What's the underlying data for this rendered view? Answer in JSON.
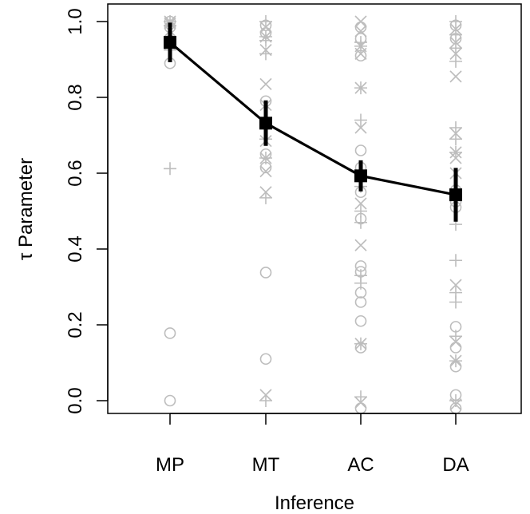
{
  "chart_data": {
    "type": "scatter",
    "title": "",
    "xlabel": "Inference",
    "ylabel": "τ Parameter",
    "categories": [
      "MP",
      "MT",
      "AC",
      "DA"
    ],
    "ylim": [
      -0.03,
      1.03
    ],
    "yticks": [
      "0.0",
      "0.2",
      "0.4",
      "0.6",
      "0.8",
      "1.0"
    ],
    "grid": false,
    "legend": "none",
    "colors": {
      "raw_points": "#bdbdbd",
      "mean_line": "#000000"
    },
    "mean_series": {
      "values": [
        0.945,
        0.732,
        0.593,
        0.543
      ],
      "ci_low": [
        0.893,
        0.672,
        0.552,
        0.472
      ],
      "ci_high": [
        0.997,
        0.792,
        0.634,
        0.614
      ]
    },
    "raw_points": [
      {
        "cat": 0,
        "y": 1.0,
        "m": "o"
      },
      {
        "cat": 0,
        "y": 0.995,
        "m": "x"
      },
      {
        "cat": 0,
        "y": 0.99,
        "m": "+"
      },
      {
        "cat": 0,
        "y": 1.0,
        "m": "*"
      },
      {
        "cat": 0,
        "y": 0.985,
        "m": "o"
      },
      {
        "cat": 0,
        "y": 0.975,
        "m": "x"
      },
      {
        "cat": 0,
        "y": 0.96,
        "m": "+"
      },
      {
        "cat": 0,
        "y": 0.95,
        "m": "o"
      },
      {
        "cat": 0,
        "y": 0.94,
        "m": "x"
      },
      {
        "cat": 0,
        "y": 0.925,
        "m": "+"
      },
      {
        "cat": 0,
        "y": 0.89,
        "m": "o"
      },
      {
        "cat": 0,
        "y": 0.612,
        "m": "+"
      },
      {
        "cat": 0,
        "y": 0.178,
        "m": "o"
      },
      {
        "cat": 0,
        "y": 0.0,
        "m": "o"
      },
      {
        "cat": 1,
        "y": 1.0,
        "m": "+"
      },
      {
        "cat": 1,
        "y": 0.99,
        "m": "o"
      },
      {
        "cat": 1,
        "y": 0.985,
        "m": "x"
      },
      {
        "cat": 1,
        "y": 0.97,
        "m": "o"
      },
      {
        "cat": 1,
        "y": 0.96,
        "m": "*"
      },
      {
        "cat": 1,
        "y": 0.95,
        "m": "+"
      },
      {
        "cat": 1,
        "y": 0.925,
        "m": "x"
      },
      {
        "cat": 1,
        "y": 0.915,
        "m": "+"
      },
      {
        "cat": 1,
        "y": 0.835,
        "m": "x"
      },
      {
        "cat": 1,
        "y": 0.79,
        "m": "o"
      },
      {
        "cat": 1,
        "y": 0.78,
        "m": "x"
      },
      {
        "cat": 1,
        "y": 0.69,
        "m": "+"
      },
      {
        "cat": 1,
        "y": 0.685,
        "m": "x"
      },
      {
        "cat": 1,
        "y": 0.65,
        "m": "o"
      },
      {
        "cat": 1,
        "y": 0.64,
        "m": "*"
      },
      {
        "cat": 1,
        "y": 0.615,
        "m": "o"
      },
      {
        "cat": 1,
        "y": 0.605,
        "m": "x"
      },
      {
        "cat": 1,
        "y": 0.55,
        "m": "x"
      },
      {
        "cat": 1,
        "y": 0.535,
        "m": "+"
      },
      {
        "cat": 1,
        "y": 0.338,
        "m": "o"
      },
      {
        "cat": 1,
        "y": 0.11,
        "m": "o"
      },
      {
        "cat": 1,
        "y": 0.015,
        "m": "x"
      },
      {
        "cat": 1,
        "y": 0.0,
        "m": "+"
      },
      {
        "cat": 2,
        "y": 1.0,
        "m": "x"
      },
      {
        "cat": 2,
        "y": 0.985,
        "m": "o"
      },
      {
        "cat": 2,
        "y": 0.975,
        "m": "x"
      },
      {
        "cat": 2,
        "y": 0.955,
        "m": "o"
      },
      {
        "cat": 2,
        "y": 0.945,
        "m": "+"
      },
      {
        "cat": 2,
        "y": 0.935,
        "m": "*"
      },
      {
        "cat": 2,
        "y": 0.915,
        "m": "x"
      },
      {
        "cat": 2,
        "y": 0.91,
        "m": "o"
      },
      {
        "cat": 2,
        "y": 0.825,
        "m": "*"
      },
      {
        "cat": 2,
        "y": 0.74,
        "m": "+"
      },
      {
        "cat": 2,
        "y": 0.72,
        "m": "x"
      },
      {
        "cat": 2,
        "y": 0.66,
        "m": "o"
      },
      {
        "cat": 2,
        "y": 0.615,
        "m": "o"
      },
      {
        "cat": 2,
        "y": 0.595,
        "m": "x"
      },
      {
        "cat": 2,
        "y": 0.565,
        "m": "+"
      },
      {
        "cat": 2,
        "y": 0.55,
        "m": "o"
      },
      {
        "cat": 2,
        "y": 0.52,
        "m": "x"
      },
      {
        "cat": 2,
        "y": 0.5,
        "m": "+"
      },
      {
        "cat": 2,
        "y": 0.48,
        "m": "o"
      },
      {
        "cat": 2,
        "y": 0.47,
        "m": "+"
      },
      {
        "cat": 2,
        "y": 0.41,
        "m": "x"
      },
      {
        "cat": 2,
        "y": 0.355,
        "m": "o"
      },
      {
        "cat": 2,
        "y": 0.34,
        "m": "o"
      },
      {
        "cat": 2,
        "y": 0.33,
        "m": "+"
      },
      {
        "cat": 2,
        "y": 0.31,
        "m": "+"
      },
      {
        "cat": 2,
        "y": 0.285,
        "m": "o"
      },
      {
        "cat": 2,
        "y": 0.26,
        "m": "o"
      },
      {
        "cat": 2,
        "y": 0.21,
        "m": "o"
      },
      {
        "cat": 2,
        "y": 0.15,
        "m": "*"
      },
      {
        "cat": 2,
        "y": 0.14,
        "m": "o"
      },
      {
        "cat": 2,
        "y": 0.01,
        "m": "+"
      },
      {
        "cat": 2,
        "y": -0.005,
        "m": "x"
      },
      {
        "cat": 2,
        "y": -0.02,
        "m": "o"
      },
      {
        "cat": 3,
        "y": 1.0,
        "m": "+"
      },
      {
        "cat": 3,
        "y": 0.99,
        "m": "o"
      },
      {
        "cat": 3,
        "y": 0.98,
        "m": "x"
      },
      {
        "cat": 3,
        "y": 0.965,
        "m": "+"
      },
      {
        "cat": 3,
        "y": 0.955,
        "m": "o"
      },
      {
        "cat": 3,
        "y": 0.945,
        "m": "x"
      },
      {
        "cat": 3,
        "y": 0.93,
        "m": "+"
      },
      {
        "cat": 3,
        "y": 0.915,
        "m": "x"
      },
      {
        "cat": 3,
        "y": 0.895,
        "m": "+"
      },
      {
        "cat": 3,
        "y": 0.855,
        "m": "x"
      },
      {
        "cat": 3,
        "y": 0.72,
        "m": "+"
      },
      {
        "cat": 3,
        "y": 0.705,
        "m": "x"
      },
      {
        "cat": 3,
        "y": 0.69,
        "m": "+"
      },
      {
        "cat": 3,
        "y": 0.655,
        "m": "*"
      },
      {
        "cat": 3,
        "y": 0.64,
        "m": "x"
      },
      {
        "cat": 3,
        "y": 0.6,
        "m": "x"
      },
      {
        "cat": 3,
        "y": 0.555,
        "m": "o"
      },
      {
        "cat": 3,
        "y": 0.525,
        "m": "o"
      },
      {
        "cat": 3,
        "y": 0.51,
        "m": "o"
      },
      {
        "cat": 3,
        "y": 0.465,
        "m": "+"
      },
      {
        "cat": 3,
        "y": 0.37,
        "m": "+"
      },
      {
        "cat": 3,
        "y": 0.305,
        "m": "x"
      },
      {
        "cat": 3,
        "y": 0.285,
        "m": "+"
      },
      {
        "cat": 3,
        "y": 0.26,
        "m": "+"
      },
      {
        "cat": 3,
        "y": 0.195,
        "m": "o"
      },
      {
        "cat": 3,
        "y": 0.17,
        "m": "+"
      },
      {
        "cat": 3,
        "y": 0.155,
        "m": "x"
      },
      {
        "cat": 3,
        "y": 0.14,
        "m": "o"
      },
      {
        "cat": 3,
        "y": 0.105,
        "m": "*"
      },
      {
        "cat": 3,
        "y": 0.09,
        "m": "o"
      },
      {
        "cat": 3,
        "y": 0.015,
        "m": "o"
      },
      {
        "cat": 3,
        "y": 0.0,
        "m": "+"
      },
      {
        "cat": 3,
        "y": -0.01,
        "m": "x"
      },
      {
        "cat": 3,
        "y": -0.02,
        "m": "o"
      }
    ]
  }
}
